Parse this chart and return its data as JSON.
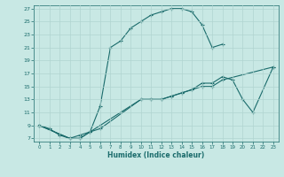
{
  "xlabel": "Humidex (Indice chaleur)",
  "xlim": [
    -0.5,
    23.5
  ],
  "ylim": [
    6.5,
    27.5
  ],
  "xticks": [
    0,
    1,
    2,
    3,
    4,
    5,
    6,
    7,
    8,
    9,
    10,
    11,
    12,
    13,
    14,
    15,
    16,
    17,
    18,
    19,
    20,
    21,
    22,
    23
  ],
  "yticks": [
    7,
    9,
    11,
    13,
    15,
    17,
    19,
    21,
    23,
    25,
    27
  ],
  "bg_color": "#c8e8e4",
  "line_color": "#1a6b6b",
  "grid_color": "#b0d4d0",
  "series": [
    {
      "x": [
        0,
        1,
        2,
        3,
        4,
        5,
        6,
        7,
        8,
        9,
        10,
        11,
        12,
        13,
        14,
        15,
        16,
        17,
        18
      ],
      "y": [
        9,
        8.5,
        7.5,
        7,
        7.5,
        8,
        12,
        21,
        22,
        24,
        25,
        26,
        26.5,
        27,
        27,
        26.5,
        24.5,
        21,
        21.5
      ]
    },
    {
      "x": [
        0,
        3,
        4,
        5,
        6,
        10,
        11,
        12,
        13,
        14,
        15,
        16,
        17,
        18,
        23
      ],
      "y": [
        9,
        7,
        7,
        8,
        9,
        13,
        13,
        13,
        13.5,
        14,
        14.5,
        15,
        15,
        16,
        18
      ]
    },
    {
      "x": [
        0,
        3,
        4,
        5,
        6,
        10,
        11,
        12,
        13,
        14,
        15,
        16,
        17,
        18,
        19,
        20,
        21,
        23
      ],
      "y": [
        9,
        7,
        7,
        8,
        8.5,
        13,
        13,
        13,
        13.5,
        14,
        14.5,
        15.5,
        15.5,
        16.5,
        16,
        13,
        11,
        18
      ]
    }
  ]
}
